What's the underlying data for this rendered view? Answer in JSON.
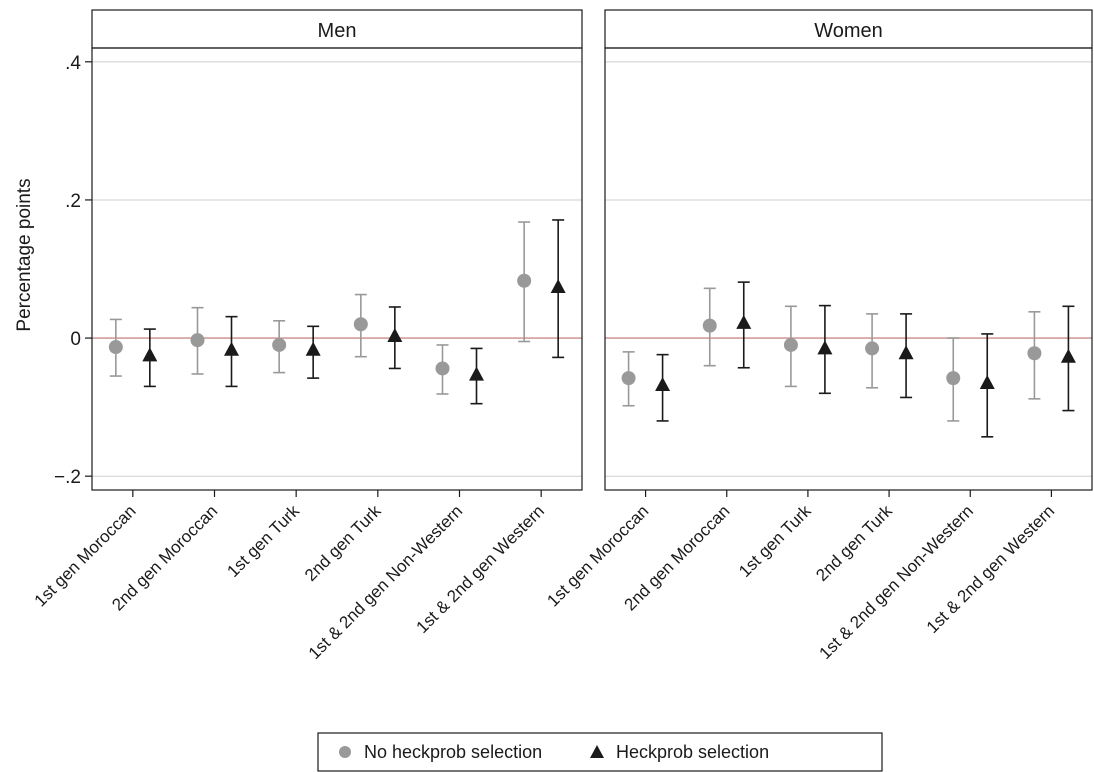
{
  "chart_data": {
    "type": "scatter",
    "ylabel": "Percentage points",
    "ylim": [
      -0.22,
      0.42
    ],
    "yticks": [
      {
        "value": 0.4,
        "label": ".4"
      },
      {
        "value": 0.2,
        "label": ".2"
      },
      {
        "value": 0,
        "label": "0"
      },
      {
        "value": -0.2,
        "label": "−.2"
      }
    ],
    "grid": true,
    "reference_line": 0,
    "categories": [
      "1st gen Moroccan",
      "2nd gen Moroccan",
      "1st gen Turk",
      "2nd gen Turk",
      "1st & 2nd gen Non-Western",
      "1st & 2nd gen Western"
    ],
    "legend": {
      "position": "bottom",
      "entries": [
        {
          "label": "No heckprob selection",
          "marker": "circle",
          "color": "#999999"
        },
        {
          "label": "Heckprob selection",
          "marker": "triangle",
          "color": "#1a1a1a"
        }
      ]
    },
    "panels": [
      {
        "title": "Men",
        "series": [
          {
            "name": "No heckprob selection",
            "points": [
              {
                "y": -0.013,
                "lo": -0.055,
                "hi": 0.027
              },
              {
                "y": -0.003,
                "lo": -0.052,
                "hi": 0.044
              },
              {
                "y": -0.01,
                "lo": -0.05,
                "hi": 0.025
              },
              {
                "y": 0.02,
                "lo": -0.027,
                "hi": 0.063
              },
              {
                "y": -0.044,
                "lo": -0.081,
                "hi": -0.01
              },
              {
                "y": 0.083,
                "lo": -0.005,
                "hi": 0.168
              }
            ]
          },
          {
            "name": "Heckprob selection",
            "points": [
              {
                "y": -0.025,
                "lo": -0.07,
                "hi": 0.013
              },
              {
                "y": -0.017,
                "lo": -0.07,
                "hi": 0.031
              },
              {
                "y": -0.017,
                "lo": -0.058,
                "hi": 0.017
              },
              {
                "y": 0.003,
                "lo": -0.044,
                "hi": 0.045
              },
              {
                "y": -0.053,
                "lo": -0.095,
                "hi": -0.015
              },
              {
                "y": 0.074,
                "lo": -0.028,
                "hi": 0.171
              }
            ]
          }
        ]
      },
      {
        "title": "Women",
        "series": [
          {
            "name": "No heckprob selection",
            "points": [
              {
                "y": -0.058,
                "lo": -0.098,
                "hi": -0.02
              },
              {
                "y": 0.018,
                "lo": -0.04,
                "hi": 0.072
              },
              {
                "y": -0.01,
                "lo": -0.07,
                "hi": 0.046
              },
              {
                "y": -0.015,
                "lo": -0.072,
                "hi": 0.035
              },
              {
                "y": -0.058,
                "lo": -0.12,
                "hi": 0.0
              },
              {
                "y": -0.022,
                "lo": -0.088,
                "hi": 0.038
              }
            ]
          },
          {
            "name": "Heckprob selection",
            "points": [
              {
                "y": -0.068,
                "lo": -0.12,
                "hi": -0.024
              },
              {
                "y": 0.022,
                "lo": -0.043,
                "hi": 0.081
              },
              {
                "y": -0.015,
                "lo": -0.08,
                "hi": 0.047
              },
              {
                "y": -0.022,
                "lo": -0.086,
                "hi": 0.035
              },
              {
                "y": -0.065,
                "lo": -0.143,
                "hi": 0.006
              },
              {
                "y": -0.027,
                "lo": -0.105,
                "hi": 0.046
              }
            ]
          }
        ]
      }
    ]
  }
}
